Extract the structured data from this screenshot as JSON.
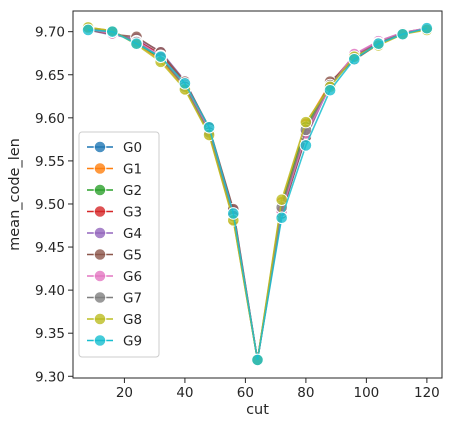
{
  "chart_data": {
    "type": "line",
    "title": "",
    "xlabel": "cut",
    "ylabel": "mean_code_len",
    "xlim": [
      3,
      125
    ],
    "ylim": [
      9.298,
      9.724
    ],
    "xticks": [
      20,
      40,
      60,
      80,
      100,
      120
    ],
    "yticks": [
      9.3,
      9.35,
      9.4,
      9.45,
      9.5,
      9.55,
      9.6,
      9.65,
      9.7
    ],
    "ytick_labels": [
      "9.30",
      "9.35",
      "9.40",
      "9.45",
      "9.50",
      "9.55",
      "9.60",
      "9.65",
      "9.70"
    ],
    "grid": false,
    "legend_position": "lower-left",
    "x": [
      8,
      16,
      24,
      32,
      40,
      48,
      56,
      64,
      72,
      80,
      88,
      96,
      104,
      112,
      120
    ],
    "series": [
      {
        "name": "G0",
        "color": "#1f77b4",
        "values": [
          9.703,
          9.699,
          9.69,
          9.674,
          9.639,
          9.588,
          9.49,
          9.319,
          9.488,
          9.58,
          9.637,
          9.67,
          9.687,
          9.698,
          9.704
        ]
      },
      {
        "name": "G1",
        "color": "#ff7f0e",
        "values": [
          9.705,
          9.701,
          9.686,
          9.667,
          9.634,
          9.581,
          9.482,
          9.319,
          9.502,
          9.593,
          9.64,
          9.668,
          9.685,
          9.697,
          9.703
        ]
      },
      {
        "name": "G2",
        "color": "#2ca02c",
        "values": [
          9.704,
          9.7,
          9.687,
          9.669,
          9.637,
          9.584,
          9.485,
          9.319,
          9.498,
          9.589,
          9.639,
          9.669,
          9.686,
          9.698,
          9.703
        ]
      },
      {
        "name": "G3",
        "color": "#d62728",
        "values": [
          9.703,
          9.698,
          9.69,
          9.674,
          9.641,
          9.587,
          9.49,
          9.319,
          9.494,
          9.583,
          9.64,
          9.672,
          9.688,
          9.699,
          9.704
        ]
      },
      {
        "name": "G4",
        "color": "#9467bd",
        "values": [
          9.702,
          9.696,
          9.692,
          9.677,
          9.643,
          9.588,
          9.493,
          9.319,
          9.491,
          9.577,
          9.638,
          9.673,
          9.689,
          9.699,
          9.704
        ]
      },
      {
        "name": "G5",
        "color": "#8c564b",
        "values": [
          9.702,
          9.697,
          9.694,
          9.676,
          9.642,
          9.589,
          9.494,
          9.319,
          9.489,
          9.578,
          9.642,
          9.667,
          9.686,
          9.698,
          9.703
        ]
      },
      {
        "name": "G6",
        "color": "#e377c2",
        "values": [
          9.703,
          9.698,
          9.689,
          9.672,
          9.638,
          9.585,
          9.488,
          9.319,
          9.492,
          9.582,
          9.636,
          9.674,
          9.689,
          9.699,
          9.704
        ]
      },
      {
        "name": "G7",
        "color": "#7f7f7f",
        "values": [
          9.704,
          9.7,
          9.688,
          9.67,
          9.636,
          9.583,
          9.486,
          9.319,
          9.496,
          9.586,
          9.638,
          9.67,
          9.687,
          9.698,
          9.703
        ]
      },
      {
        "name": "G8",
        "color": "#bcbd22",
        "values": [
          9.705,
          9.701,
          9.685,
          9.665,
          9.633,
          9.58,
          9.481,
          9.319,
          9.505,
          9.595,
          9.636,
          9.671,
          9.684,
          9.697,
          9.702
        ]
      },
      {
        "name": "G9",
        "color": "#17becf",
        "values": [
          9.702,
          9.7,
          9.686,
          9.671,
          9.64,
          9.589,
          9.489,
          9.319,
          9.484,
          9.568,
          9.632,
          9.668,
          9.686,
          9.697,
          9.704
        ]
      }
    ]
  }
}
